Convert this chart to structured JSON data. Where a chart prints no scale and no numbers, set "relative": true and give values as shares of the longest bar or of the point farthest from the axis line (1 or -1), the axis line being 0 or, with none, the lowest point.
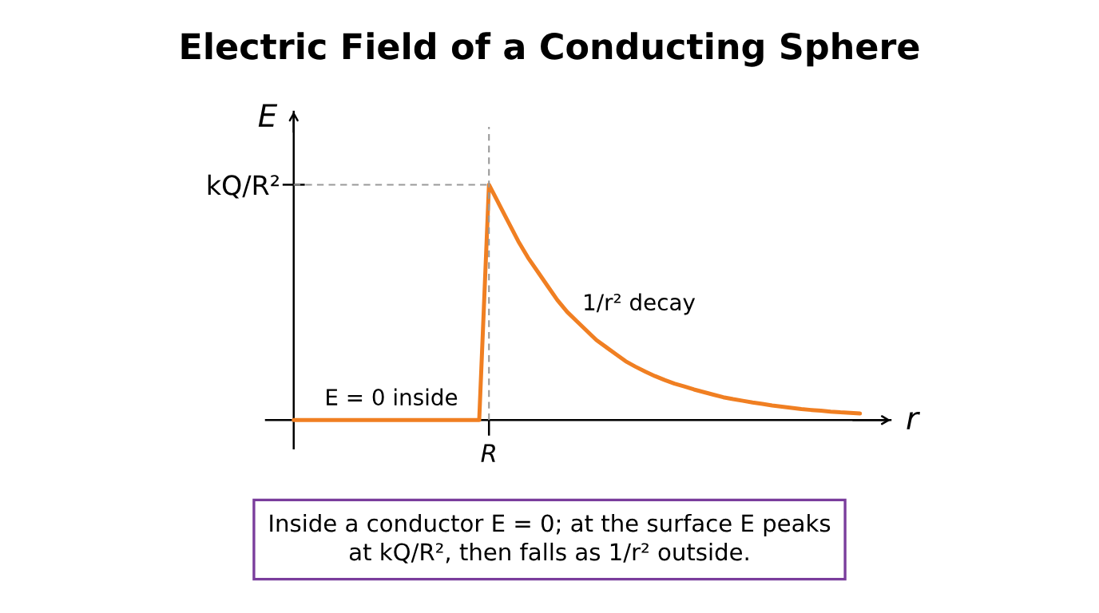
{
  "chart_data": {
    "type": "line",
    "title": "Electric Field of a Conducting Sphere",
    "xlabel": "r",
    "ylabel": "E",
    "relative": true,
    "categories": [
      null,
      null,
      null,
      null,
      null,
      null,
      null,
      null,
      null,
      null,
      null,
      null,
      null,
      null,
      null,
      null,
      null,
      null,
      null,
      null,
      null,
      null,
      null,
      null,
      null,
      null,
      null,
      null,
      null,
      null,
      null,
      null,
      null,
      null,
      null,
      null,
      null,
      null,
      null,
      null,
      null,
      null,
      null,
      null,
      null,
      null,
      null,
      null,
      null,
      null,
      null,
      null,
      null,
      null,
      null,
      null,
      null,
      null,
      null
    ],
    "series": [
      {
        "color": "#f07f22",
        "values": [
          0,
          0,
          0,
          0,
          0,
          0,
          0,
          0,
          0,
          0,
          0,
          0,
          0,
          0,
          0,
          0,
          0,
          0,
          0,
          0,
          1,
          0.92,
          0.84,
          0.76,
          0.69,
          0.63,
          0.57,
          0.51,
          0.46,
          0.42,
          0.38,
          0.34,
          0.31,
          0.28,
          0.25,
          0.227,
          0.206,
          0.187,
          0.17,
          0.155,
          0.143,
          0.13,
          0.119,
          0.108,
          0.097,
          0.089,
          0.082,
          0.075,
          0.069,
          0.062,
          0.057,
          0.052,
          0.047,
          0.043,
          0.04,
          0.036,
          0.033,
          0.031,
          0.028
        ]
      }
    ],
    "ref_lines": [
      {
        "axis": "y",
        "value": 1,
        "label": "kQ/R²",
        "color": "#999999",
        "line_style": "dashed"
      }
    ],
    "annotations": [
      "R",
      "E = 0 inside",
      "1/r² decay",
      "Inside a conductor E = 0; at the surface E peaks\nat kQ/R², then falls as 1/r² outside."
    ]
  }
}
